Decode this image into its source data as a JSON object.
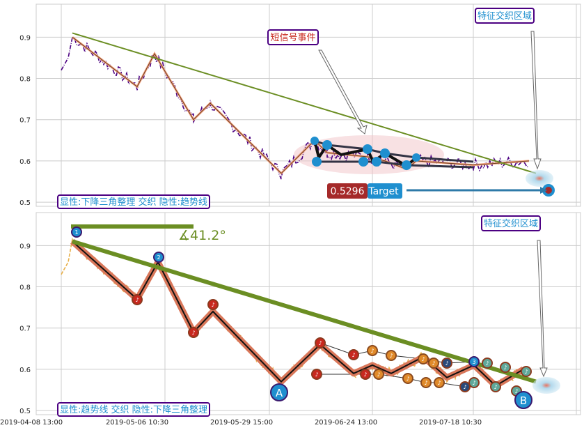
{
  "chart_data": [
    {
      "type": "line",
      "panel": "top",
      "ylim": [
        0.49,
        0.98
      ],
      "yticks": [
        0.5,
        0.6,
        0.7,
        0.8,
        0.9
      ],
      "grid": true,
      "price_series_color": "#4b0082",
      "zigzag": [
        0.9,
        0.78,
        0.86,
        0.7,
        0.74,
        0.57,
        0.65,
        0.62,
        0.61,
        0.6,
        0.58,
        0.6,
        0.59,
        0.6
      ],
      "downtrend_line": [
        0.91,
        0.57
      ],
      "annotations": {
        "short_signal": "短信号事件",
        "feature_zone": "特征交织区域",
        "legend": "显性:下降三角整理 交织 隐性:趋势线",
        "target_value": "0.5296",
        "target_label": "Target"
      }
    },
    {
      "type": "line",
      "panel": "bottom",
      "ylim": [
        0.49,
        0.98
      ],
      "yticks": [
        0.5,
        0.6,
        0.7,
        0.8,
        0.9
      ],
      "grid": true,
      "price_series_color": "#e8b04a",
      "angle_label": "∡41.2°",
      "point_labels": [
        "1",
        "2",
        "3",
        "A",
        "B"
      ],
      "zigzag": [
        0.91,
        0.77,
        0.86,
        0.69,
        0.74,
        0.57,
        0.66,
        0.59,
        0.61,
        0.59,
        0.63,
        0.58,
        0.61,
        0.56,
        0.6
      ],
      "downtrend_line": [
        0.91,
        0.57
      ],
      "annotations": {
        "feature_zone": "特征交织区域",
        "legend": "显性:趋势线 交织 隐性:下降三角整理"
      }
    }
  ],
  "x_tick_labels": [
    "2019-04-08 13:00",
    "2019-05-06 10:30",
    "2019-05-29 15:00",
    "2019-06-24 13:00",
    "2019-07-18 10:30"
  ],
  "colors": {
    "trend": "#6b8e23",
    "zigzag_top": "#f4a582",
    "zigzag_bottom": "#d9775a",
    "blue_marker": "#1f8fcf",
    "red_marker": "#c8281e",
    "orange_marker": "#e08a2a",
    "target_red": "#a52a2a",
    "annotation_border": "#4b0082"
  }
}
